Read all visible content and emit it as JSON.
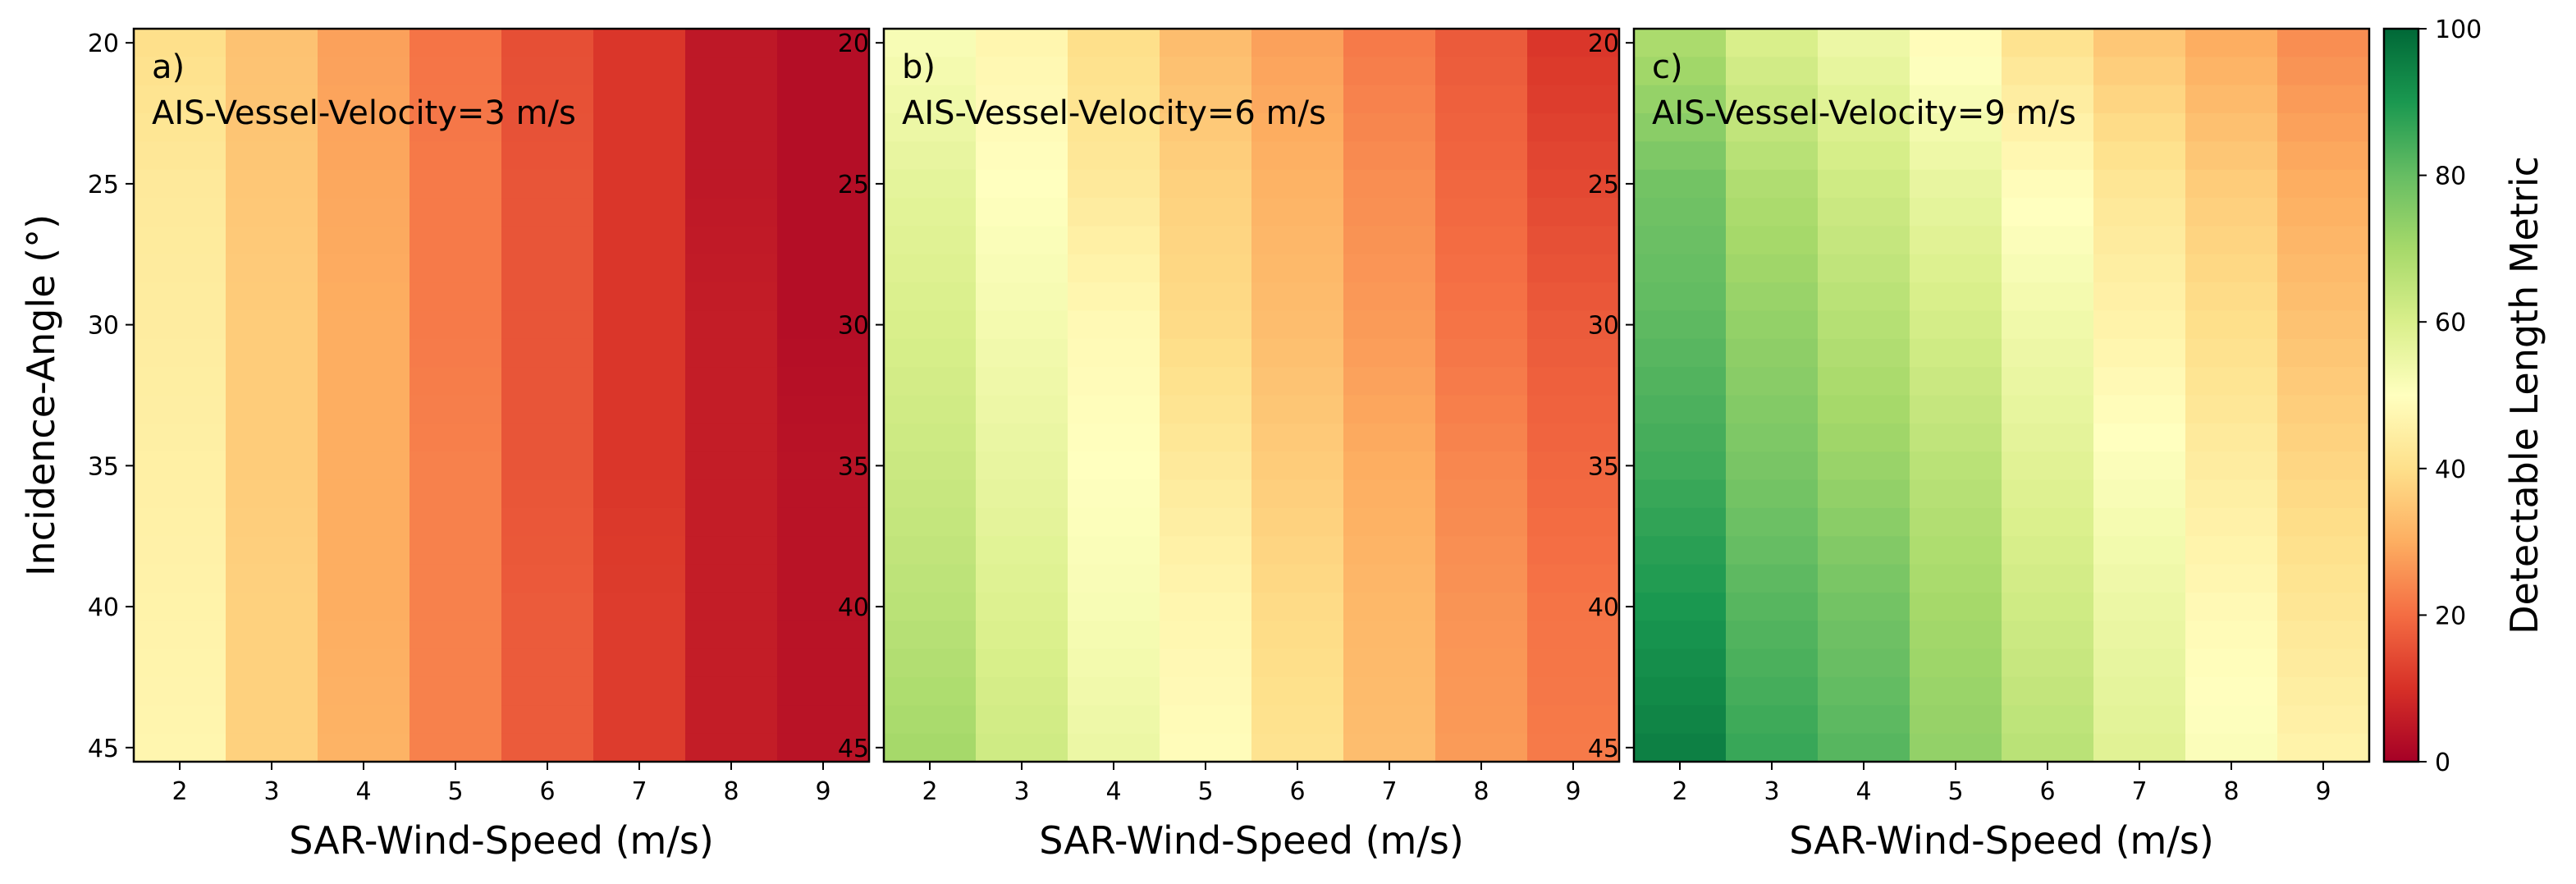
{
  "chart_data": [
    {
      "type": "heatmap",
      "panel_label": "a)",
      "title": "AIS-Vessel-Velocity=3 m/s",
      "xlabel": "SAR-Wind-Speed (m/s)",
      "ylabel": "Incidence-Angle (°)",
      "x": [
        2,
        3,
        4,
        5,
        6,
        7,
        8,
        9
      ],
      "y": [
        20,
        25,
        30,
        35,
        40,
        45
      ],
      "x_ticks": [
        2,
        3,
        4,
        5,
        6,
        7,
        8,
        9
      ],
      "y_ticks": [
        20,
        25,
        30,
        35,
        40,
        45
      ],
      "xlim": [
        1.5,
        9.5
      ],
      "ylim": [
        45.5,
        19.5
      ],
      "values": [
        [
          40,
          34,
          28,
          21,
          15,
          11,
          5,
          3
        ],
        [
          43,
          35,
          29,
          22,
          16,
          11,
          5,
          3
        ],
        [
          44,
          36,
          30,
          22,
          16,
          11,
          6,
          3
        ],
        [
          45,
          36,
          30,
          23,
          16,
          11,
          6,
          4
        ],
        [
          46,
          37,
          30,
          23,
          17,
          12,
          6,
          4
        ],
        [
          47,
          37,
          31,
          23,
          17,
          12,
          6,
          4
        ]
      ]
    },
    {
      "type": "heatmap",
      "panel_label": "b)",
      "title": "AIS-Vessel-Velocity=6 m/s",
      "xlabel": "SAR-Wind-Speed (m/s)",
      "ylabel": "",
      "x": [
        2,
        3,
        4,
        5,
        6,
        7,
        8,
        9
      ],
      "y": [
        20,
        25,
        30,
        35,
        40,
        45
      ],
      "x_ticks": [
        2,
        3,
        4,
        5,
        6,
        7,
        8,
        9
      ],
      "y_ticks": [
        20,
        25,
        30,
        35,
        40,
        45
      ],
      "xlim": [
        1.5,
        9.5
      ],
      "ylim": [
        45.5,
        19.5
      ],
      "values": [
        [
          52,
          47,
          40,
          33,
          28,
          22,
          17,
          11
        ],
        [
          57,
          50,
          43,
          37,
          31,
          25,
          19,
          14
        ],
        [
          60,
          53,
          48,
          39,
          33,
          27,
          21,
          17
        ],
        [
          63,
          56,
          50,
          43,
          36,
          30,
          24,
          19
        ],
        [
          66,
          59,
          52,
          47,
          39,
          32,
          26,
          21
        ],
        [
          70,
          62,
          55,
          49,
          41,
          33,
          27,
          22
        ]
      ]
    },
    {
      "type": "heatmap",
      "panel_label": "c)",
      "title": "AIS-Vessel-Velocity=9 m/s",
      "xlabel": "SAR-Wind-Speed (m/s)",
      "ylabel": "",
      "x": [
        2,
        3,
        4,
        5,
        6,
        7,
        8,
        9
      ],
      "y": [
        20,
        25,
        30,
        35,
        40,
        45
      ],
      "x_ticks": [
        2,
        3,
        4,
        5,
        6,
        7,
        8,
        9
      ],
      "y_ticks": [
        20,
        25,
        30,
        35,
        40,
        45
      ],
      "xlim": [
        1.5,
        9.5
      ],
      "ylim": [
        45.5,
        19.5
      ],
      "values": [
        [
          69,
          60,
          55,
          49,
          41,
          35,
          30,
          25
        ],
        [
          78,
          68,
          62,
          56,
          49,
          42,
          36,
          30
        ],
        [
          81,
          73,
          67,
          61,
          54,
          46,
          40,
          34
        ],
        [
          85,
          77,
          72,
          66,
          58,
          51,
          44,
          38
        ],
        [
          90,
          82,
          78,
          70,
          62,
          55,
          48,
          42
        ],
        [
          95,
          86,
          82,
          73,
          66,
          58,
          51,
          46
        ]
      ]
    }
  ],
  "colorbar": {
    "label": "Detectable Length Metric",
    "ticks": [
      0,
      20,
      40,
      60,
      80,
      100
    ],
    "range": [
      0,
      100
    ],
    "colormap": "RdYlGn",
    "color_stops": [
      "#a50026",
      "#d73027",
      "#f46d43",
      "#fdae61",
      "#fee08b",
      "#ffffbf",
      "#d9ef8b",
      "#a6d96a",
      "#66bd63",
      "#1a9850",
      "#006837"
    ]
  }
}
